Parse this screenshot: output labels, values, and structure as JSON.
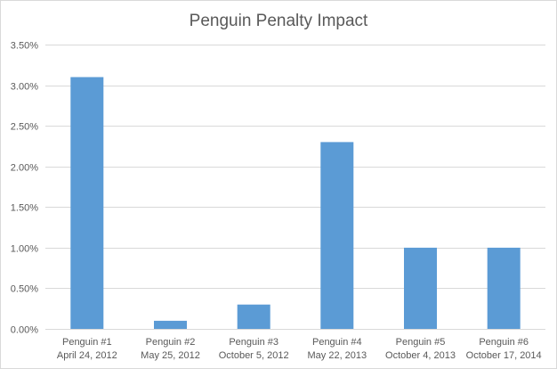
{
  "chart_data": {
    "type": "bar",
    "title": "Penguin Penalty Impact",
    "xlabel": "",
    "ylabel": "",
    "categories": [
      {
        "name": "Penguin #1",
        "date": "April 24, 2012"
      },
      {
        "name": "Penguin #2",
        "date": "May 25, 2012"
      },
      {
        "name": "Penguin #3",
        "date": "October 5, 2012"
      },
      {
        "name": "Penguin #4",
        "date": "May 22, 2013"
      },
      {
        "name": "Penguin #5",
        "date": "October 4, 2013"
      },
      {
        "name": "Penguin #6",
        "date": "October 17, 2014"
      }
    ],
    "values": [
      3.1,
      0.1,
      0.3,
      2.3,
      1.0,
      1.0
    ],
    "ylim": [
      0,
      3.5
    ],
    "yticks": [
      0,
      0.5,
      1.0,
      1.5,
      2.0,
      2.5,
      3.0,
      3.5
    ],
    "ytick_labels": [
      "0.00%",
      "0.50%",
      "1.00%",
      "1.50%",
      "2.00%",
      "2.50%",
      "3.00%",
      "3.50%"
    ],
    "grid": true,
    "legend": "none",
    "bar_color": "#5b9bd5",
    "grid_color": "#d9d9d9",
    "text_color": "#595959"
  }
}
